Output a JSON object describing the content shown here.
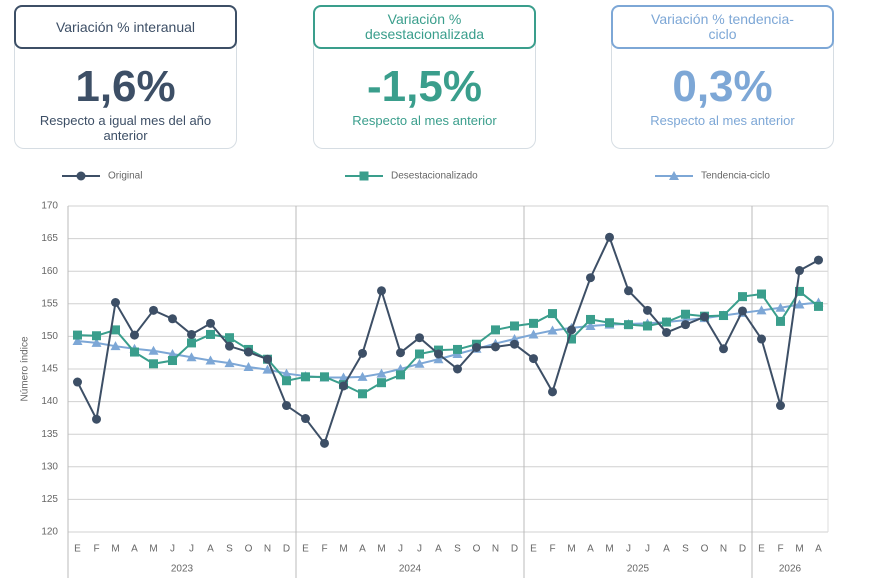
{
  "cards": [
    {
      "title": "Variación % interanual",
      "value": "1,6%",
      "subtitle": "Respecto a igual mes del año anterior",
      "color": "#3d4f66"
    },
    {
      "title": "Variación % desestacionalizada",
      "value": "-1,5%",
      "subtitle": "Respecto al mes anterior",
      "color": "#3a9e8c"
    },
    {
      "title": "Variación % tendencia-ciclo",
      "value": "0,3%",
      "subtitle": "Respecto al mes anterior",
      "color": "#7da7d6"
    }
  ],
  "chart_data": {
    "type": "line",
    "y_label": "Número índice",
    "groups": [
      {
        "year": "2023",
        "months": [
          "E",
          "F",
          "M",
          "A",
          "M",
          "J",
          "J",
          "A",
          "S",
          "O",
          "N",
          "D"
        ]
      },
      {
        "year": "2024",
        "months": [
          "E",
          "F",
          "M",
          "A",
          "M",
          "J",
          "J",
          "A",
          "S",
          "O",
          "N",
          "D"
        ]
      },
      {
        "year": "2025",
        "months": [
          "E",
          "F",
          "M",
          "A",
          "M",
          "J",
          "J",
          "A",
          "S",
          "O",
          "N",
          "D"
        ]
      },
      {
        "year": "2026",
        "months": [
          "E",
          "F",
          "M",
          "A"
        ]
      }
    ],
    "series": [
      {
        "name": "Original",
        "color": "#3d4f66",
        "marker": "circle",
        "values": [
          143,
          137.3,
          155.2,
          150.2,
          154,
          152.7,
          150.3,
          152,
          148.5,
          147.6,
          146.5,
          139.4,
          137.4,
          133.6,
          142.4,
          147.4,
          157,
          147.5,
          149.8,
          147.3,
          145,
          148.3,
          148.4,
          148.8,
          146.6,
          141.5,
          151,
          159,
          165.2,
          157,
          154,
          150.6,
          151.8,
          153,
          148.1,
          153.9,
          149.6,
          139.4,
          160.1,
          161.7
        ]
      },
      {
        "name": "Desestacionalizado",
        "color": "#3a9e8c",
        "marker": "square",
        "values": [
          150.2,
          150.1,
          151,
          147.6,
          145.8,
          146.3,
          149,
          150.3,
          149.8,
          148,
          146.5,
          143.2,
          143.8,
          143.8,
          142.6,
          141.2,
          142.9,
          144.1,
          147.3,
          147.9,
          148,
          148.8,
          151,
          151.6,
          152,
          153.5,
          149.6,
          152.6,
          152.1,
          151.8,
          151.6,
          152.2,
          153.4,
          153.1,
          153.2,
          156.1,
          156.5,
          152.3,
          156.9,
          154.6
        ]
      },
      {
        "name": "Tendencia-ciclo",
        "color": "#7da7d6",
        "marker": "triangle",
        "values": [
          149.3,
          149,
          148.5,
          148.1,
          147.8,
          147.3,
          146.8,
          146.3,
          145.9,
          145.3,
          144.9,
          144.3,
          143.9,
          143.7,
          143.7,
          143.8,
          144.3,
          145,
          145.8,
          146.5,
          147.3,
          148.1,
          148.9,
          149.6,
          150.3,
          150.9,
          151.3,
          151.6,
          151.8,
          151.9,
          152,
          152.2,
          152.5,
          152.8,
          153.2,
          153.6,
          154,
          154.4,
          154.9,
          155.2
        ]
      }
    ],
    "ylim": [
      120,
      170
    ],
    "yticks": [
      120,
      125,
      130,
      135,
      140,
      145,
      150,
      155,
      160,
      165,
      170
    ],
    "grid": true
  }
}
